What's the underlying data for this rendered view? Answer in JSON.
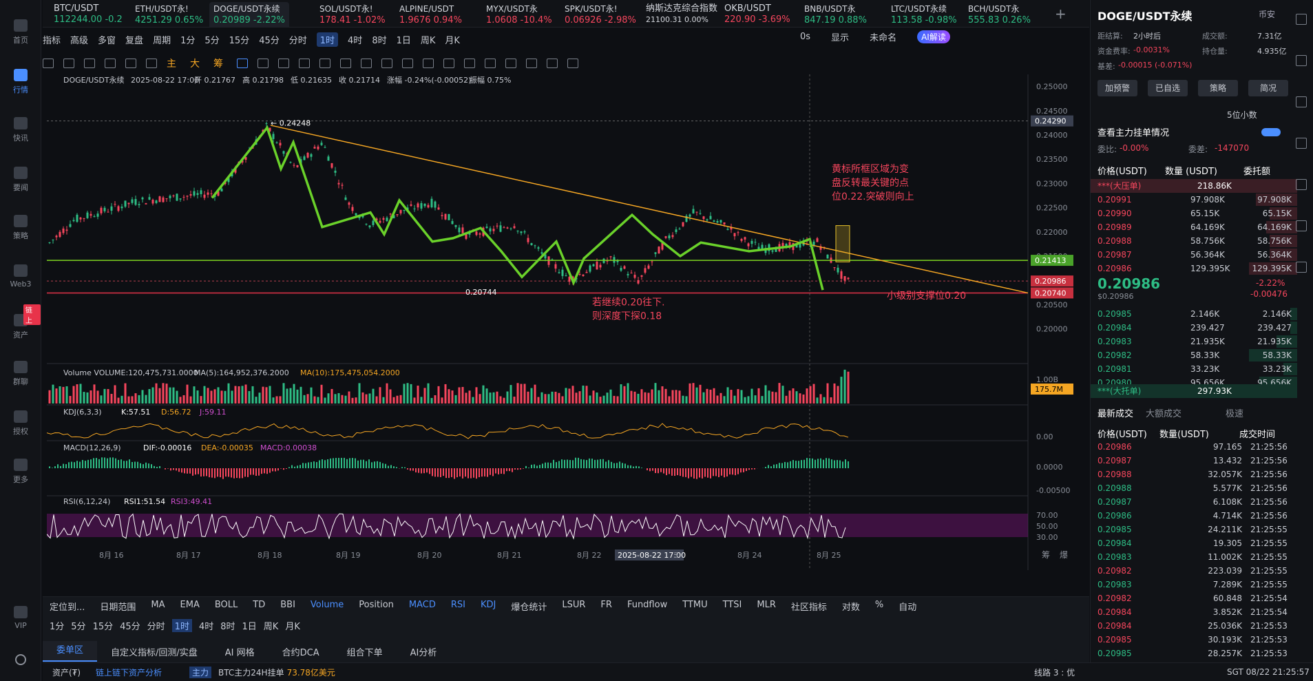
{
  "leftbar": [
    "首页",
    "行情",
    "快讯",
    "要闻",
    "策略",
    "Web3",
    "资产",
    "群聊",
    "授权",
    "更多",
    "VIP"
  ],
  "leftbar_badge": "链上",
  "tabs": [
    {
      "name": "BTC/USDT",
      "price": "112244.00",
      "chg": "-0.2",
      "dir": "up"
    },
    {
      "name": "ETH/USDT永!",
      "price": "4251.29",
      "chg": "0.65%",
      "dir": "up"
    },
    {
      "name": "DOGE/USDT永续",
      "price": "0.20989",
      "chg": "-2.22%",
      "dir": "up",
      "active": true
    },
    {
      "name": "SOL/USDT永!",
      "price": "178.41",
      "chg": "-1.02%",
      "dir": "down"
    },
    {
      "name": "ALPINE/USDT",
      "price": "1.9676",
      "chg": "0.94%",
      "dir": "down"
    },
    {
      "name": "MYX/USDT永",
      "price": "1.0608",
      "chg": "-10.4%",
      "dir": "down"
    },
    {
      "name": "SPK/USDT永!",
      "price": "0.06926",
      "chg": "-2.98%",
      "dir": "down"
    },
    {
      "name": "纳斯达克综合指数",
      "price": "21100.31",
      "chg": "0.00%",
      "dir": "none"
    },
    {
      "name": "OKB/USDT",
      "price": "220.90",
      "chg": "-3.69%",
      "dir": "down"
    },
    {
      "name": "BNB/USDT永",
      "price": "847.19",
      "chg": "0.88%",
      "dir": "up"
    },
    {
      "name": "LTC/USDT永续",
      "price": "113.58",
      "chg": "-0.98%",
      "dir": "up"
    },
    {
      "name": "BCH/USDT永",
      "price": "555.83",
      "chg": "0.26%",
      "dir": "up"
    }
  ],
  "toolbar1": [
    "指标",
    "高级",
    "多窗",
    "复盘",
    "周期",
    "1分",
    "5分",
    "15分",
    "45分",
    "分时",
    "1时",
    "4时",
    "8时",
    "1日",
    "周K",
    "月K"
  ],
  "toolbar1_right": [
    "0s",
    "显示",
    "未命名",
    "AI解读"
  ],
  "toolbar2": [
    "主",
    "大",
    "筹"
  ],
  "info_line": {
    "symbol": "DOGE/USDT永续",
    "date": "2025-08-22 17:00",
    "open": "开 0.21767",
    "high": "高 0.21798",
    "low": "低 0.21635",
    "close": "收 0.21714",
    "chg": "涨幅 -0.24%(-0.00052)",
    "amp": "振幅 0.75%"
  },
  "price_axis": [
    "0.25000",
    "0.24500",
    "0.24000",
    "0.23500",
    "0.23000",
    "0.22500",
    "0.22000",
    "0.21500",
    "0.21000",
    "0.20500",
    "0.20000"
  ],
  "price_tags": {
    "p1": "0.24290",
    "p2": "0.21413",
    "p3": "0.20986",
    "p4": "0.20740"
  },
  "annotations": {
    "high": "0.24248",
    "low": "0.20744",
    "box_text": "黄标所框区域为变盘反转最关键的点位0.22.突破则向上",
    "support": "小级别支撑位0.20",
    "break": "若继续0.20往下.则深度下探0.18"
  },
  "volume": {
    "label": "Volume",
    "total": "VOLUME:120,475,731.0000",
    "ma5": "MA(5):164,952,376.2000",
    "ma10": "MA(10):175,475,054.2000",
    "axis": "1.00B",
    "tag": "175.7M"
  },
  "kdj": {
    "label": "KDJ(6,3,3)",
    "k": "K:57.51",
    "d": "D:56.72",
    "j": "J:59.11",
    "axis": "0.00"
  },
  "macd": {
    "label": "MACD(12,26,9)",
    "dif": "DIF:-0.00016",
    "dea": "DEA:-0.00035",
    "macd": "MACD:0.00038",
    "axis1": "0.0000",
    "axis2": "-0.00500"
  },
  "rsi": {
    "label": "RSI(6,12,24)",
    "r1": "RSI1:51.54",
    "r3": "RSI3:49.41",
    "axis": [
      "70.00",
      "50.00",
      "30.00"
    ]
  },
  "time_axis": [
    "8月 16",
    "8月 17",
    "8月 18",
    "8月 19",
    "8月 20",
    "8月 21",
    "8月 22",
    "2025-08-22 17:00",
    "8月 24",
    "8月 25"
  ],
  "time_axis_extra": "3",
  "bottom_tabs1": [
    "定位到...",
    "日期范围",
    "MA",
    "EMA",
    "BOLL",
    "TD",
    "BBI",
    "Volume",
    "Position",
    "MACD",
    "RSI",
    "KDJ",
    "爆仓统计",
    "LSUR",
    "FR",
    "Fundflow",
    "TTMU",
    "TTSI",
    "MLR",
    "社区指标",
    "对数",
    "%",
    "自动"
  ],
  "bottom_periods": [
    "1分",
    "5分",
    "15分",
    "45分",
    "分时",
    "1时",
    "4时",
    "8时",
    "1日",
    "周K",
    "月K"
  ],
  "bottom_tabs2": [
    "委单区",
    "自定义指标/回测/实盘",
    "AI 网格",
    "合约DCA",
    "组合下单",
    "AI分析"
  ],
  "status": {
    "asset": "资产(₮)",
    "link": "链上链下资产分析",
    "main": "主力",
    "btc": "BTC主力24H挂单",
    "btc_val": "73.78亿美元",
    "line": "线路 3 : 优",
    "time": "SGT 08/22 21:25:57",
    "extra1": "筹",
    "extra2": "爆"
  },
  "ob": {
    "title": "DOGE/USDT永续",
    "exchange": "币安",
    "settle_l": "距结算:",
    "settle_v": "2小时后",
    "vol_l": "成交额:",
    "vol_v": "7.31亿",
    "fund_l": "资金费率:",
    "fund_v": "-0.0031%",
    "oi_l": "持仓量:",
    "oi_v": "4.935亿",
    "basis_l": "基差:",
    "basis_v": "-0.00015 (-0.071%)",
    "buttons": [
      "加预警",
      "已自选",
      "策略",
      "简况"
    ],
    "decimals": "5位小数",
    "whale": "查看主力挂单情况",
    "ratio_l": "委比:",
    "ratio_v": "-0.00%",
    "diff_l": "委差:",
    "diff_v": "-147070",
    "headers": [
      "价格(USDT)",
      "数量 (USDT)",
      "委托额"
    ],
    "big_ask": "***(大压单)",
    "big_ask_v": "218.86K",
    "asks": [
      [
        "0.20991",
        "97.908K",
        "97.908K"
      ],
      [
        "0.20990",
        "65.15K",
        "65.15K"
      ],
      [
        "0.20989",
        "64.169K",
        "64.169K"
      ],
      [
        "0.20988",
        "58.756K",
        "58.756K"
      ],
      [
        "0.20987",
        "56.364K",
        "56.364K"
      ],
      [
        "0.20986",
        "129.395K",
        "129.395K"
      ]
    ],
    "last": "0.20986",
    "last_sub": "$0.20986",
    "last_pct": "-2.22%",
    "last_chg": "-0.00476",
    "bids": [
      [
        "0.20985",
        "2.146K",
        "2.146K"
      ],
      [
        "0.20984",
        "239.427",
        "239.427"
      ],
      [
        "0.20983",
        "21.935K",
        "21.935K"
      ],
      [
        "0.20982",
        "58.33K",
        "58.33K"
      ],
      [
        "0.20981",
        "33.23K",
        "33.23K"
      ],
      [
        "0.20980",
        "95.656K",
        "95.656K"
      ]
    ],
    "big_bid": "***(大托单)",
    "big_bid_v": "297.93K",
    "trade_tabs": [
      "最新成交",
      "大额成交",
      "极速"
    ],
    "trade_headers": [
      "价格(USDT)",
      "数量(USDT)",
      "成交时间"
    ],
    "trades": [
      [
        "0.20986",
        "97.165",
        "21:25:56",
        "d"
      ],
      [
        "0.20987",
        "13.432",
        "21:25:56",
        "d"
      ],
      [
        "0.20988",
        "32.057K",
        "21:25:56",
        "d"
      ],
      [
        "0.20988",
        "5.577K",
        "21:25:56",
        "u"
      ],
      [
        "0.20987",
        "6.108K",
        "21:25:56",
        "u"
      ],
      [
        "0.20986",
        "4.714K",
        "21:25:56",
        "u"
      ],
      [
        "0.20985",
        "24.211K",
        "21:25:55",
        "u"
      ],
      [
        "0.20984",
        "19.305",
        "21:25:55",
        "u"
      ],
      [
        "0.20983",
        "11.002K",
        "21:25:55",
        "u"
      ],
      [
        "0.20982",
        "223.039",
        "21:25:55",
        "d"
      ],
      [
        "0.20983",
        "7.289K",
        "21:25:55",
        "u"
      ],
      [
        "0.20982",
        "60.848",
        "21:25:54",
        "d"
      ],
      [
        "0.20984",
        "3.852K",
        "21:25:54",
        "d"
      ],
      [
        "0.20984",
        "25.036K",
        "21:25:53",
        "d"
      ],
      [
        "0.20985",
        "30.193K",
        "21:25:53",
        "d"
      ],
      [
        "0.20985",
        "28.257K",
        "21:25:53",
        "u"
      ]
    ]
  },
  "colors": {
    "up": "#2ebd85",
    "down": "#f6465d",
    "accent": "#4b8fff",
    "trend": "#f5a623",
    "zigzag": "#6ad12a",
    "support": "#7ed321",
    "redline": "#e8334a",
    "box": "#e6c12a"
  }
}
